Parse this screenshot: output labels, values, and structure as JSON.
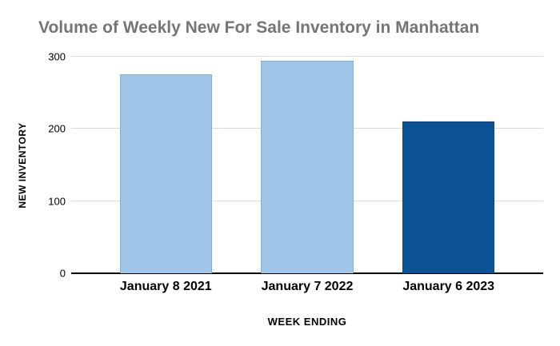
{
  "chart_data": {
    "type": "bar",
    "title": "Volume of Weekly New For Sale Inventory in Manhattan",
    "categories": [
      "January 8 2021",
      "January 7 2022",
      "January 6 2023"
    ],
    "values": [
      276,
      295,
      210
    ],
    "xlabel": "WEEK ENDING",
    "ylabel": "NEW INVENTORY",
    "ylim": [
      0,
      300
    ],
    "yticks": [
      0,
      100,
      200,
      300
    ],
    "grid": true,
    "legend_position": "none",
    "bar_colors": [
      "#9fc5e8",
      "#9fc5e8",
      "#0b5394"
    ],
    "bar_border_colors": [
      "#83add4",
      "#83add4",
      "#094a85"
    ]
  },
  "colors": {
    "background": "#ffffff",
    "title_text": "#757575",
    "axis_text": "#000000",
    "gridline": "#dcdcdc",
    "axis_line": "#000000"
  }
}
